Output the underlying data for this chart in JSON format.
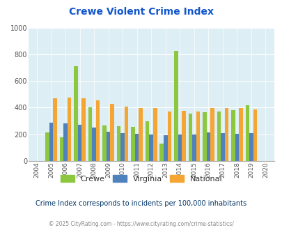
{
  "title": "Crewe Violent Crime Index",
  "years": [
    2004,
    2005,
    2006,
    2007,
    2008,
    2009,
    2010,
    2011,
    2012,
    2013,
    2014,
    2015,
    2016,
    2017,
    2018,
    2019,
    2020
  ],
  "crewe": [
    0,
    215,
    180,
    710,
    400,
    265,
    260,
    258,
    298,
    133,
    827,
    355,
    368,
    373,
    380,
    420,
    0
  ],
  "virginia": [
    0,
    288,
    283,
    270,
    252,
    222,
    210,
    204,
    200,
    193,
    200,
    200,
    215,
    210,
    203,
    207,
    0
  ],
  "national": [
    0,
    470,
    476,
    468,
    455,
    430,
    408,
    395,
    395,
    373,
    376,
    373,
    398,
    397,
    396,
    387,
    0
  ],
  "crewe_color": "#8dc63f",
  "virginia_color": "#4f81bd",
  "national_color": "#f4a533",
  "plot_bg": "#ddeef4",
  "title_color": "#1155cc",
  "ylim": [
    0,
    1000
  ],
  "subtitle": "Crime Index corresponds to incidents per 100,000 inhabitants",
  "footer": "© 2025 CityRating.com - https://www.cityrating.com/crime-statistics/",
  "subtitle_color": "#003366",
  "footer_color": "#888888",
  "bar_width": 0.27
}
